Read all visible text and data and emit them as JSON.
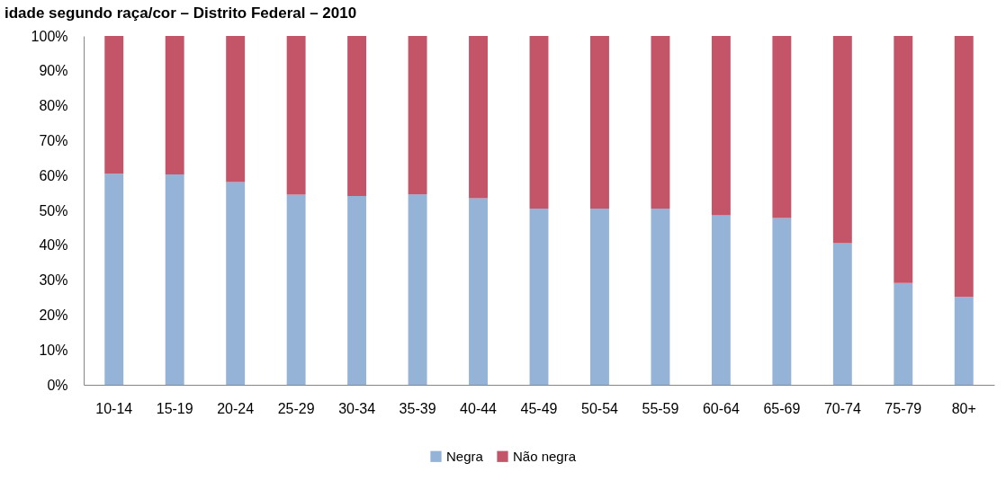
{
  "chart_data": {
    "type": "bar",
    "title": "idade segundo raça/cor – Distrito Federal – 2010",
    "categories": [
      "10-14",
      "15-19",
      "20-24",
      "25-29",
      "30-34",
      "35-39",
      "40-44",
      "45-49",
      "50-54",
      "55-59",
      "60-64",
      "65-69",
      "70-74",
      "75-79",
      "80+"
    ],
    "series": [
      {
        "name": "Negra",
        "color": "#95b3d7",
        "values": [
          60.5,
          60.3,
          58.1,
          54.5,
          54.1,
          54.6,
          53.5,
          50.5,
          50.5,
          50.5,
          48.6,
          47.8,
          40.6,
          29.2,
          25.2
        ]
      },
      {
        "name": "Não negra",
        "color": "#c45468",
        "values": [
          39.5,
          39.7,
          41.9,
          45.5,
          45.9,
          45.4,
          46.5,
          49.5,
          49.5,
          49.5,
          51.4,
          52.2,
          59.4,
          70.8,
          74.8
        ]
      }
    ],
    "stacked": true,
    "ylim": [
      0,
      100
    ],
    "yticks": [
      {
        "value": 0,
        "label": "0%"
      },
      {
        "value": 10,
        "label": "10%"
      },
      {
        "value": 20,
        "label": "20%"
      },
      {
        "value": 30,
        "label": "30%"
      },
      {
        "value": 40,
        "label": "40%"
      },
      {
        "value": 50,
        "label": "50%"
      },
      {
        "value": 60,
        "label": "60%"
      },
      {
        "value": 70,
        "label": "70%"
      },
      {
        "value": 80,
        "label": "80%"
      },
      {
        "value": 90,
        "label": "90%"
      },
      {
        "value": 100,
        "label": "100%"
      }
    ],
    "legend": "bottom"
  }
}
